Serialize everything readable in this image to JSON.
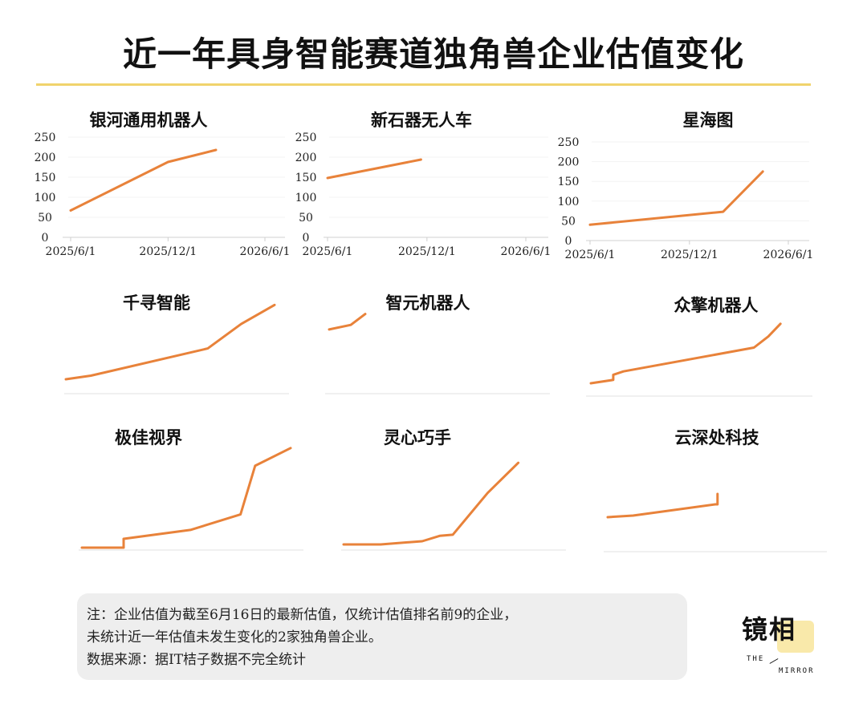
{
  "title": "近一年具身智能赛道独角兽企业估值变化",
  "accent_color": "#e8823a",
  "note": {
    "lines": [
      "注：企业估值为截至6月16日的最新估值，仅统计估值排名前9的企业，",
      "未统计近一年估值未发生变化的2家独角兽企业。",
      "数据来源：据IT桔子数据不完全统计"
    ]
  },
  "logo": {
    "text": "镜相",
    "sub1": "THE",
    "sub2": "MIRROR"
  },
  "chart_data": [
    {
      "type": "line",
      "title": "银河通用机器人",
      "x_ticks": [
        "2025/6/1",
        "2025/12/1",
        "2026/6/1"
      ],
      "y_ticks": [
        "250",
        "200",
        "150",
        "100",
        "50",
        "0"
      ],
      "ylim": [
        0,
        250
      ],
      "axes_shown": true,
      "x": [
        "2025/6/1",
        "2025/12/1",
        "2026/3/1"
      ],
      "values": [
        67,
        188,
        218
      ]
    },
    {
      "type": "line",
      "title": "新石器无人车",
      "x_ticks": [
        "2025/6/1",
        "2025/12/1",
        "2026/6/1"
      ],
      "y_ticks": [
        "250",
        "200",
        "150",
        "100",
        "50",
        "0"
      ],
      "ylim": [
        0,
        250
      ],
      "axes_shown": true,
      "x": [
        "2025/6/1",
        "2025/11/20"
      ],
      "values": [
        148,
        194
      ]
    },
    {
      "type": "line",
      "title": "星海图",
      "x_ticks": [
        "2025/6/1",
        "2025/12/1",
        "2026/6/1"
      ],
      "y_ticks": [
        "250",
        "200",
        "150",
        "100",
        "50",
        "0"
      ],
      "ylim": [
        0,
        250
      ],
      "axes_shown": true,
      "x": [
        "2025/6/1",
        "2026/2/1",
        "2026/4/15"
      ],
      "values": [
        40,
        73,
        175
      ]
    },
    {
      "type": "line",
      "title": "千寻智能",
      "axes_shown": false,
      "x": [
        0.0,
        0.12,
        0.68,
        0.84,
        1.0
      ],
      "values": [
        0.0,
        0.04,
        0.34,
        0.61,
        0.82
      ]
    },
    {
      "type": "line",
      "title": "智元机器人",
      "axes_shown": false,
      "x": [
        0.0,
        0.12,
        0.2
      ],
      "values": [
        0.55,
        0.6,
        0.72
      ]
    },
    {
      "type": "line",
      "title": "众擎机器人",
      "axes_shown": false,
      "x": [
        0.0,
        0.11,
        0.11,
        0.16,
        0.8,
        0.87,
        0.93
      ],
      "values": [
        0.0,
        0.04,
        0.1,
        0.14,
        0.42,
        0.55,
        0.7
      ]
    },
    {
      "type": "line",
      "title": "极佳视界",
      "axes_shown": false,
      "x": [
        0.0,
        0.2,
        0.2,
        0.52,
        0.76,
        0.83,
        1.0
      ],
      "values": [
        0.0,
        0.0,
        0.08,
        0.16,
        0.3,
        0.74,
        0.9
      ]
    },
    {
      "type": "line",
      "title": "灵心巧手",
      "axes_shown": false,
      "x": [
        0.0,
        0.17,
        0.36,
        0.44,
        0.5,
        0.66,
        0.8
      ],
      "values": [
        0.0,
        0.0,
        0.03,
        0.08,
        0.09,
        0.48,
        0.76
      ]
    },
    {
      "type": "line",
      "title": "云深处科技",
      "axes_shown": false,
      "x": [
        0.0,
        0.12,
        0.51,
        0.52,
        0.52
      ],
      "values": [
        0.0,
        0.02,
        0.16,
        0.16,
        0.29
      ]
    }
  ]
}
